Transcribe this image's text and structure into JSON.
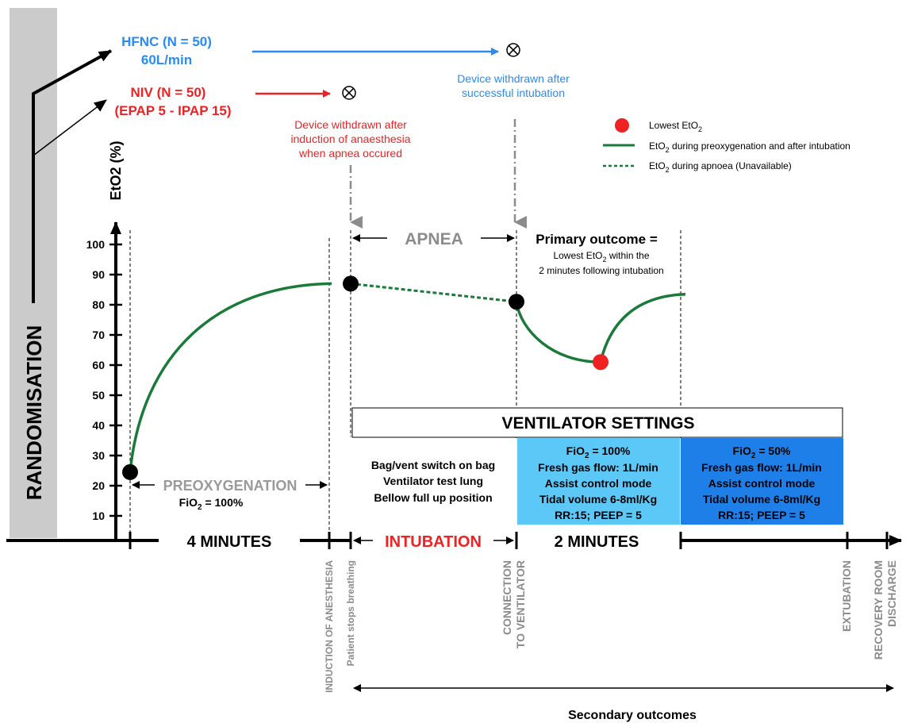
{
  "randomisation": "RANDOMISATION",
  "arms": {
    "hfnc": {
      "line1": "HFNC (N = 50)",
      "line2": "60L/min",
      "color": "#2a8bf2",
      "withdrawn": [
        "Device withdrawn after",
        "successful intubation"
      ]
    },
    "niv": {
      "line1": "NIV (N = 50)",
      "line2": "(EPAP 5 - IPAP 15)",
      "color": "#ee2222",
      "withdrawn": [
        "Device withdrawn after",
        "induction of anaesthesia",
        "when apnea occured"
      ]
    }
  },
  "legend": {
    "lowest": {
      "text": "Lowest EtO",
      "sub": "2"
    },
    "solid": {
      "pre": "EtO",
      "sub": "2",
      "post": " during preoxygenation and after intubation"
    },
    "dashed": {
      "pre": "EtO",
      "sub": "2",
      "post": " during apnoea (Unavailable)"
    }
  },
  "apnea": "APNEA",
  "primary_outcome": {
    "title": "Primary outcome =",
    "line1_pre": "Lowest EtO",
    "line1_sub": "2",
    "line1_post": " within the",
    "line2": "2 minutes following intubation"
  },
  "ventilator_settings": {
    "title": "VENTILATOR SETTINGS",
    "bag": [
      "Bag/vent switch on bag",
      "Ventilator test lung",
      "Bellow full up position"
    ],
    "fio2_100": {
      "fio2_pre": "FiO",
      "fio2_sub": "2",
      "fio2_post": " = 100%",
      "lines": [
        "Fresh gas flow: 1L/min",
        "Assist control mode",
        "Tidal volume 6-8ml/Kg",
        "RR:15; PEEP = 5"
      ],
      "color": "#5bc8f8"
    },
    "fio2_50": {
      "fio2_pre": "FiO",
      "fio2_sub": "2",
      "fio2_post": " = 50%",
      "lines": [
        "Fresh gas flow: 1L/min",
        "Assist control mode",
        "Tidal volume 6-8ml/Kg",
        "RR:15; PEEP = 5"
      ],
      "color": "#1f7fe8"
    }
  },
  "preox": {
    "label": "PREOXYGENATION",
    "fio2_pre": "FiO",
    "fio2_sub": "2",
    "fio2_post": " = 100%"
  },
  "timeline": {
    "four_minutes": "4 MINUTES",
    "intubation": "INTUBATION",
    "two_minutes": "2 MINUTES",
    "events": {
      "induction": "INDUCTION OF ANESTHESIA",
      "stops": "Patient stops breathing",
      "connection1": "CONNECTION",
      "connection2": "TO VENTILATOR",
      "extubation": "EXTUBATION",
      "recovery1": "RECOVERY ROOM",
      "recovery2": "DISCHARGE"
    }
  },
  "secondary_outcomes": "Secondary outcomes",
  "y_axis": {
    "label": "EtO2 (%)",
    "ticks": [
      10,
      20,
      30,
      40,
      50,
      60,
      70,
      80,
      90,
      100
    ]
  },
  "chart_data": {
    "type": "line",
    "ylabel": "EtO2 (%)",
    "ylim": [
      0,
      100
    ],
    "series": [
      {
        "name": "EtO2 during preoxygenation and after intubation",
        "style": "solid",
        "color": "#1a7a3a",
        "points": [
          {
            "phase": "randomisation",
            "y": 24.5
          },
          {
            "phase": "induction of anesthesia",
            "y": 87
          }
        ]
      },
      {
        "name": "EtO2 during apnoea (Unavailable)",
        "style": "dashed",
        "color": "#1a7a3a",
        "points": [
          {
            "phase": "patient stops breathing",
            "y": 87
          },
          {
            "phase": "connection to ventilator",
            "y": 81
          }
        ]
      },
      {
        "name": "EtO2 during preoxygenation and after intubation",
        "style": "solid",
        "color": "#1a7a3a",
        "points": [
          {
            "phase": "connection to ventilator",
            "y": 81
          },
          {
            "phase": "lowest",
            "y": 61
          },
          {
            "phase": "2 minutes",
            "y": 83.5
          }
        ]
      }
    ],
    "markers": [
      {
        "phase": "randomisation",
        "y": 24.5,
        "color": "#000000"
      },
      {
        "phase": "patient stops breathing",
        "y": 87,
        "color": "#000000"
      },
      {
        "phase": "connection to ventilator",
        "y": 81,
        "color": "#000000"
      },
      {
        "phase": "lowest",
        "y": 61,
        "color": "#ee2222"
      }
    ]
  }
}
